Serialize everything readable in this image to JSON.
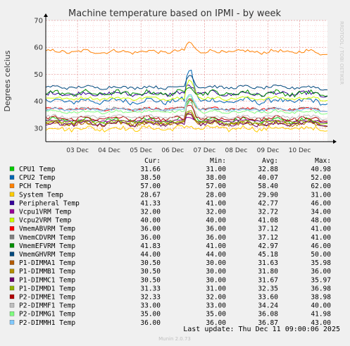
{
  "chart_data": {
    "type": "line",
    "title": "Machine temperature based on IPMI - by week",
    "ylabel": "Degrees celcius",
    "xlabel": "",
    "ylim": [
      25,
      70
    ],
    "yticks": [
      30,
      40,
      50,
      60,
      70
    ],
    "x_range": [
      "2025-12-02T12:00",
      "2025-12-11T09:00"
    ],
    "x_ticks": [
      {
        "label": "03 Dec",
        "x": "2025-12-03T12:00"
      },
      {
        "label": "04 Dec",
        "x": "2025-12-04T12:00"
      },
      {
        "label": "05 Dec",
        "x": "2025-12-05T12:00"
      },
      {
        "label": "06 Dec",
        "x": "2025-12-06T12:00"
      },
      {
        "label": "07 Dec",
        "x": "2025-12-07T12:00"
      },
      {
        "label": "08 Dec",
        "x": "2025-12-08T12:00"
      },
      {
        "label": "09 Dec",
        "x": "2025-12-09T12:00"
      },
      {
        "label": "10 Dec",
        "x": "2025-12-10T12:00"
      }
    ],
    "grid": true,
    "side_label": "RRDTOOL / TOBI OETIKER",
    "legend_headers": [
      "Cur:",
      "Min:",
      "Avg:",
      "Max:"
    ],
    "series": [
      {
        "name": "CPU1 Temp",
        "color": "#00cc00",
        "cur": "31.66",
        "min": "31.00",
        "avg": "32.88",
        "max": "40.98"
      },
      {
        "name": "CPU2 Temp",
        "color": "#0066b3",
        "cur": "38.50",
        "min": "38.00",
        "avg": "40.07",
        "max": "52.00"
      },
      {
        "name": "PCH Temp",
        "color": "#ff8000",
        "cur": "57.00",
        "min": "57.00",
        "avg": "58.40",
        "max": "62.00"
      },
      {
        "name": "System Temp",
        "color": "#ffcc00",
        "cur": "28.67",
        "min": "28.00",
        "avg": "29.90",
        "max": "31.00"
      },
      {
        "name": "Peripheral Temp",
        "color": "#330099",
        "cur": "41.33",
        "min": "41.00",
        "avg": "42.77",
        "max": "46.00"
      },
      {
        "name": "Vcpu1VRM Temp",
        "color": "#990099",
        "cur": "32.00",
        "min": "32.00",
        "avg": "32.72",
        "max": "34.00"
      },
      {
        "name": "Vcpu2VRM Temp",
        "color": "#ccff00",
        "cur": "40.00",
        "min": "40.00",
        "avg": "41.08",
        "max": "48.00"
      },
      {
        "name": "VmemABVRM Temp",
        "color": "#ff0000",
        "cur": "36.00",
        "min": "36.00",
        "avg": "37.12",
        "max": "41.00"
      },
      {
        "name": "VmemCDVRM Temp",
        "color": "#808080",
        "cur": "36.00",
        "min": "36.00",
        "avg": "37.12",
        "max": "41.00"
      },
      {
        "name": "VmemEFVRM Temp",
        "color": "#008f00",
        "cur": "41.83",
        "min": "41.00",
        "avg": "42.97",
        "max": "46.00"
      },
      {
        "name": "VmemGHVRM Temp",
        "color": "#00487d",
        "cur": "44.00",
        "min": "44.00",
        "avg": "45.18",
        "max": "50.00"
      },
      {
        "name": "P1-DIMMA1 Temp",
        "color": "#b35a00",
        "cur": "30.50",
        "min": "30.00",
        "avg": "31.63",
        "max": "35.98"
      },
      {
        "name": "P1-DIMMB1 Temp",
        "color": "#b38f00",
        "cur": "30.50",
        "min": "30.00",
        "avg": "31.80",
        "max": "36.00"
      },
      {
        "name": "P1-DIMMC1 Temp",
        "color": "#6b006b",
        "cur": "30.50",
        "min": "30.00",
        "avg": "31.67",
        "max": "35.97"
      },
      {
        "name": "P1-DIMMD1 Temp",
        "color": "#8fb300",
        "cur": "31.33",
        "min": "31.00",
        "avg": "32.35",
        "max": "36.98"
      },
      {
        "name": "P2-DIMME1 Temp",
        "color": "#b30000",
        "cur": "32.33",
        "min": "32.00",
        "avg": "33.60",
        "max": "38.98"
      },
      {
        "name": "P2-DIMMF1 Temp",
        "color": "#bebebe",
        "cur": "33.00",
        "min": "33.00",
        "avg": "34.24",
        "max": "40.00"
      },
      {
        "name": "P2-DIMMG1 Temp",
        "color": "#80ff80",
        "cur": "35.00",
        "min": "35.00",
        "avg": "36.08",
        "max": "41.98"
      },
      {
        "name": "P2-DIMMH1 Temp",
        "color": "#80c9ff",
        "cur": "36.00",
        "min": "36.00",
        "avg": "36.87",
        "max": "43.00"
      }
    ],
    "last_update": "Last update: Thu Dec 11 09:00:06 2025",
    "footer": "Munin 2.0.73"
  }
}
